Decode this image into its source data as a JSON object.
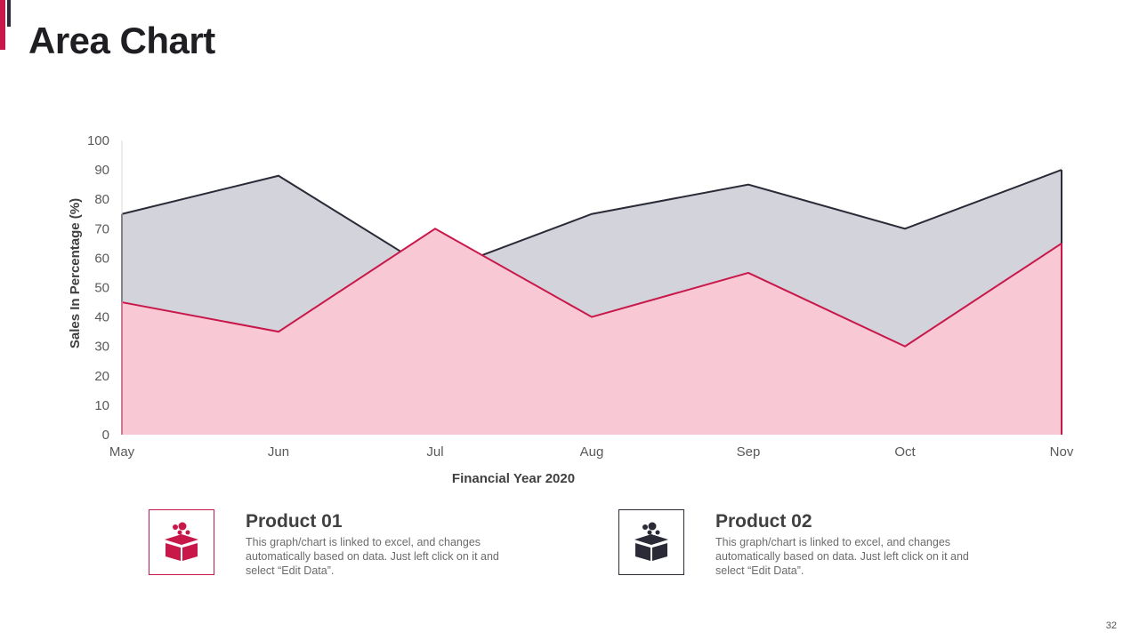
{
  "title": "Area Chart",
  "page_number": "32",
  "colors": {
    "product_01_fill": "#f9c8d5",
    "product_01_line": "#c8184a",
    "product_02_fill": "#d2d3db",
    "product_02_line": "#2b2b38",
    "accent_red": "#c8184a",
    "accent_dark": "#2b2b38"
  },
  "chart_data": {
    "type": "area",
    "title": "",
    "categories": [
      "May",
      "Jun",
      "Jul",
      "Aug",
      "Sep",
      "Oct",
      "Nov"
    ],
    "series": [
      {
        "name": "Product 02",
        "values": [
          75,
          88,
          55,
          75,
          85,
          70,
          90
        ]
      },
      {
        "name": "Product 01",
        "values": [
          45,
          35,
          70,
          40,
          55,
          30,
          65
        ]
      }
    ],
    "xlabel": "Financial Year 2020",
    "ylabel": "Sales In Percentage (%)",
    "ylim": [
      0,
      100
    ],
    "yticks": [
      0,
      10,
      20,
      30,
      40,
      50,
      60,
      70,
      80,
      90,
      100
    ],
    "grid": false,
    "legend": "none"
  },
  "products": [
    {
      "title": "Product 01",
      "icon": "gift-box-icon",
      "description": "This graph/chart is linked to excel, and changes automatically based on data. Just left click on it and select “Edit Data”."
    },
    {
      "title": "Product 02",
      "icon": "gift-box-icon",
      "description": "This graph/chart is linked to excel, and changes automatically based on data. Just left click on it and select “Edit Data”."
    }
  ]
}
